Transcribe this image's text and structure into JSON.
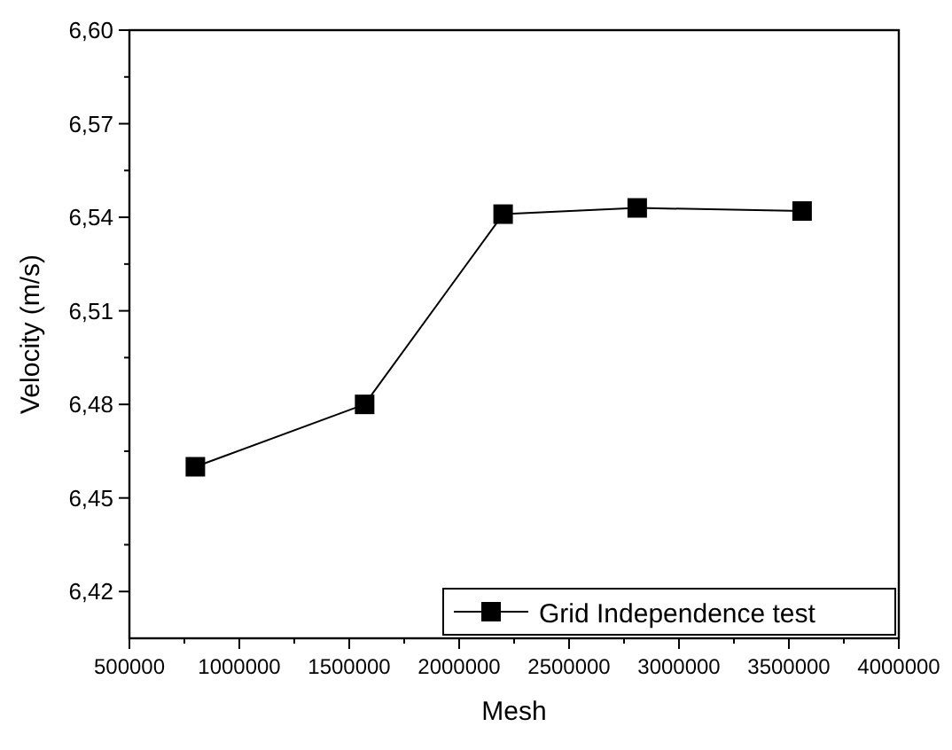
{
  "chart_data": {
    "type": "line",
    "xlabel": "Mesh",
    "ylabel": "Velocity (m/s)",
    "x": [
      800000,
      1570000,
      2200000,
      2810000,
      3560000
    ],
    "series": [
      {
        "name": "Grid Independence test",
        "color": "#000000",
        "values": [
          6.46,
          6.48,
          6.541,
          6.543,
          6.542
        ]
      }
    ],
    "xlim": [
      500000,
      4000000
    ],
    "xticks": [
      500000,
      1000000,
      1500000,
      2000000,
      2500000,
      3000000,
      3500000,
      4000000
    ],
    "ylim": [
      6.405,
      6.6
    ],
    "yticks": [
      {
        "value": 6.42,
        "label": "6,42"
      },
      {
        "value": 6.45,
        "label": "6,45"
      },
      {
        "value": 6.48,
        "label": "6,48"
      },
      {
        "value": 6.51,
        "label": "6,51"
      },
      {
        "value": 6.54,
        "label": "6,54"
      },
      {
        "value": 6.57,
        "label": "6,57"
      },
      {
        "value": 6.6,
        "label": "6,60"
      }
    ],
    "marker": "square",
    "line_style": "solid",
    "grid": false,
    "legend": "bottom right"
  }
}
